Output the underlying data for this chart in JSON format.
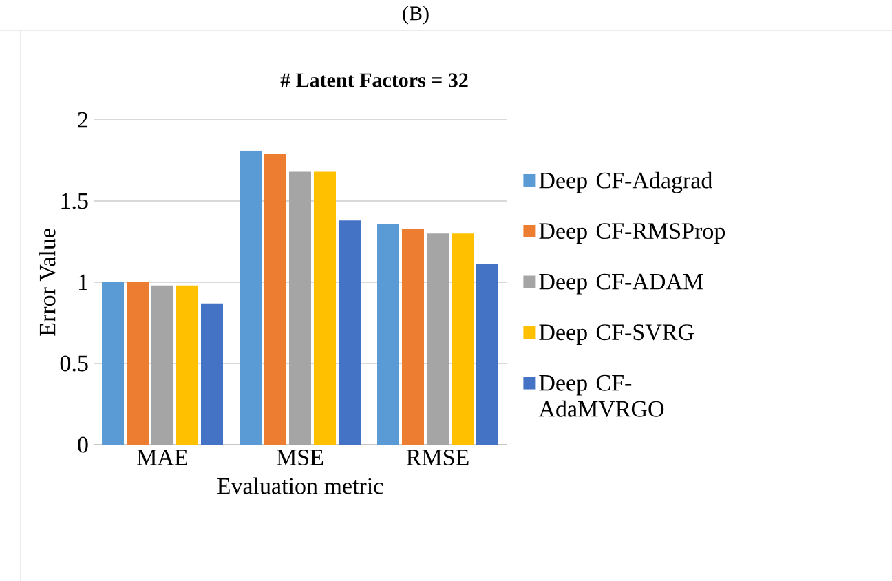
{
  "chart_data": {
    "type": "bar",
    "title": "# Latent Factors = 32",
    "xlabel": "Evaluation metric",
    "ylabel": "Error Value",
    "annotations": [
      "(B)"
    ],
    "categories": [
      "MAE",
      "MSE",
      "RMSE"
    ],
    "series": [
      {
        "name": "Deep CF-Adagrad",
        "color": "#5b9bd5",
        "values": [
          1.0,
          1.81,
          1.36
        ]
      },
      {
        "name": "Deep CF-RMSProp",
        "color": "#ed7d31",
        "values": [
          1.0,
          1.79,
          1.33
        ]
      },
      {
        "name": "Deep CF-ADAM",
        "color": "#a5a5a5",
        "values": [
          0.98,
          1.68,
          1.3
        ]
      },
      {
        "name": "Deep CF-SVRG",
        "color": "#ffc000",
        "values": [
          0.98,
          1.68,
          1.3
        ]
      },
      {
        "name": "Deep CF-AdaMVRGO",
        "color": "#4472c4",
        "values": [
          0.87,
          1.38,
          1.11
        ]
      }
    ],
    "ylim": [
      0,
      2
    ],
    "yticks": [
      0,
      0.5,
      1,
      1.5,
      2
    ],
    "grid": "y",
    "legend": "right"
  }
}
